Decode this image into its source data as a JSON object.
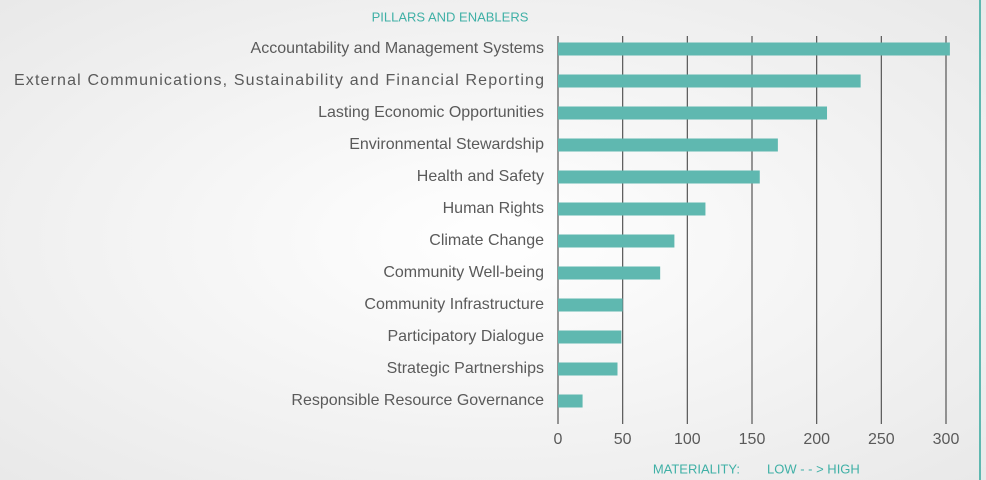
{
  "chart_data": {
    "type": "bar",
    "orientation": "horizontal",
    "title": "PILLARS AND ENABLERS",
    "x_label": "MATERIALITY:",
    "x_label_note": "LOW - - > HIGH",
    "categories": [
      "Accountability and Management Systems",
      "External Communications, Sustainability and Financial Reporting",
      "Lasting Economic Opportunities",
      "Environmental Stewardship",
      "Health and Safety",
      "Human Rights",
      "Climate Change",
      "Community Well-being",
      "Community Infrastructure",
      "Participatory Dialogue",
      "Strategic Partnerships",
      "Responsible Resource Governance"
    ],
    "values": [
      303,
      234,
      208,
      170,
      156,
      114,
      90,
      79,
      50,
      49,
      46,
      19
    ],
    "color": "#5fb8b0",
    "xlim": [
      0,
      300
    ],
    "xticks": [
      0,
      50,
      100,
      150,
      200,
      250,
      300
    ],
    "grid": true
  }
}
